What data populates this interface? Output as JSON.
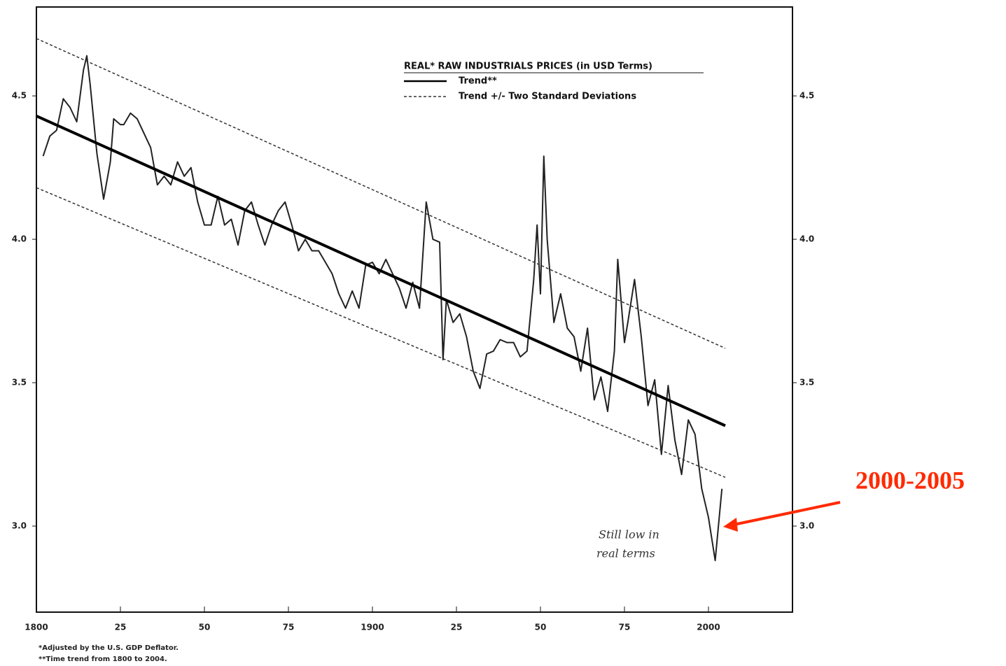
{
  "chart_data": {
    "type": "line",
    "legend_title": "REAL* RAW INDUSTRIALS PRICES (in USD Terms)",
    "annotation": [
      "Still low in",
      "real terms"
    ],
    "callout": "2000-2005",
    "callout_color": "#ff2a00",
    "footnotes": [
      "*Adjusted by the U.S. GDP Deflator.",
      "**Time trend from 1800 to 2004."
    ],
    "xlim": [
      1800,
      2025
    ],
    "ylim": [
      2.7,
      4.81
    ],
    "xticks": [
      {
        "value": 1800,
        "label": "1800"
      },
      {
        "value": 1825,
        "label": "25"
      },
      {
        "value": 1850,
        "label": "50"
      },
      {
        "value": 1875,
        "label": "75"
      },
      {
        "value": 1900,
        "label": "1900"
      },
      {
        "value": 1925,
        "label": "25"
      },
      {
        "value": 1950,
        "label": "50"
      },
      {
        "value": 1975,
        "label": "75"
      },
      {
        "value": 2000,
        "label": "2000"
      }
    ],
    "yticks": [
      {
        "value": 3,
        "label": "3.0"
      },
      3.5,
      {
        "value": 4,
        "label": "4.0"
      },
      4.5
    ],
    "series": [
      {
        "color": "#222222",
        "x": [
          1802,
          1804,
          1806,
          1808,
          1810,
          1812,
          1814,
          1815,
          1816,
          1818,
          1820,
          1822,
          1823,
          1825,
          1826,
          1828,
          1830,
          1832,
          1834,
          1836,
          1838,
          1840,
          1842,
          1844,
          1846,
          1848,
          1850,
          1852,
          1854,
          1856,
          1858,
          1860,
          1862,
          1864,
          1866,
          1868,
          1870,
          1872,
          1874,
          1876,
          1878,
          1880,
          1882,
          1884,
          1886,
          1888,
          1890,
          1892,
          1894,
          1896,
          1898,
          1900,
          1902,
          1904,
          1906,
          1908,
          1910,
          1912,
          1914,
          1916,
          1918,
          1920,
          1921,
          1922,
          1924,
          1926,
          1928,
          1930,
          1932,
          1934,
          1936,
          1938,
          1940,
          1942,
          1944,
          1946,
          1948,
          1949,
          1950,
          1951,
          1952,
          1954,
          1956,
          1958,
          1960,
          1962,
          1964,
          1966,
          1968,
          1970,
          1972,
          1973,
          1975,
          1976,
          1978,
          1980,
          1982,
          1984,
          1986,
          1988,
          1990,
          1992,
          1994,
          1996,
          1998,
          2000,
          2002,
          2004
        ],
        "values": [
          4.29,
          4.36,
          4.38,
          4.49,
          4.46,
          4.41,
          4.59,
          4.64,
          4.54,
          4.3,
          4.14,
          4.27,
          4.42,
          4.4,
          4.4,
          4.44,
          4.42,
          4.37,
          4.32,
          4.19,
          4.22,
          4.19,
          4.27,
          4.22,
          4.25,
          4.13,
          4.05,
          4.05,
          4.15,
          4.05,
          4.07,
          3.98,
          4.1,
          4.13,
          4.05,
          3.98,
          4.05,
          4.1,
          4.13,
          4.05,
          3.96,
          4.0,
          3.96,
          3.96,
          3.92,
          3.88,
          3.81,
          3.76,
          3.82,
          3.76,
          3.91,
          3.92,
          3.88,
          3.93,
          3.88,
          3.83,
          3.76,
          3.85,
          3.76,
          4.13,
          4.0,
          3.99,
          3.58,
          3.79,
          3.71,
          3.74,
          3.66,
          3.54,
          3.48,
          3.6,
          3.61,
          3.65,
          3.64,
          3.64,
          3.59,
          3.61,
          3.86,
          4.05,
          3.81,
          4.29,
          4.0,
          3.71,
          3.81,
          3.69,
          3.66,
          3.54,
          3.69,
          3.44,
          3.52,
          3.4,
          3.61,
          3.93,
          3.64,
          3.71,
          3.86,
          3.66,
          3.42,
          3.51,
          3.25,
          3.49,
          3.3,
          3.18,
          3.37,
          3.32,
          3.13,
          3.03,
          2.88,
          3.13
        ]
      },
      {
        "name": "Trend**",
        "color": "#000000",
        "x": [
          1800,
          2005
        ],
        "values": [
          4.43,
          3.35
        ]
      },
      {
        "name": "Trend +/- Two Standard Deviations",
        "color": "#333333",
        "dashed": true,
        "x": [
          1800,
          2005
        ],
        "values": [
          4.7,
          3.62
        ]
      },
      {
        "color": "#333333",
        "dashed": true,
        "x": [
          1800,
          2005
        ],
        "values": [
          4.18,
          3.17
        ]
      }
    ]
  }
}
